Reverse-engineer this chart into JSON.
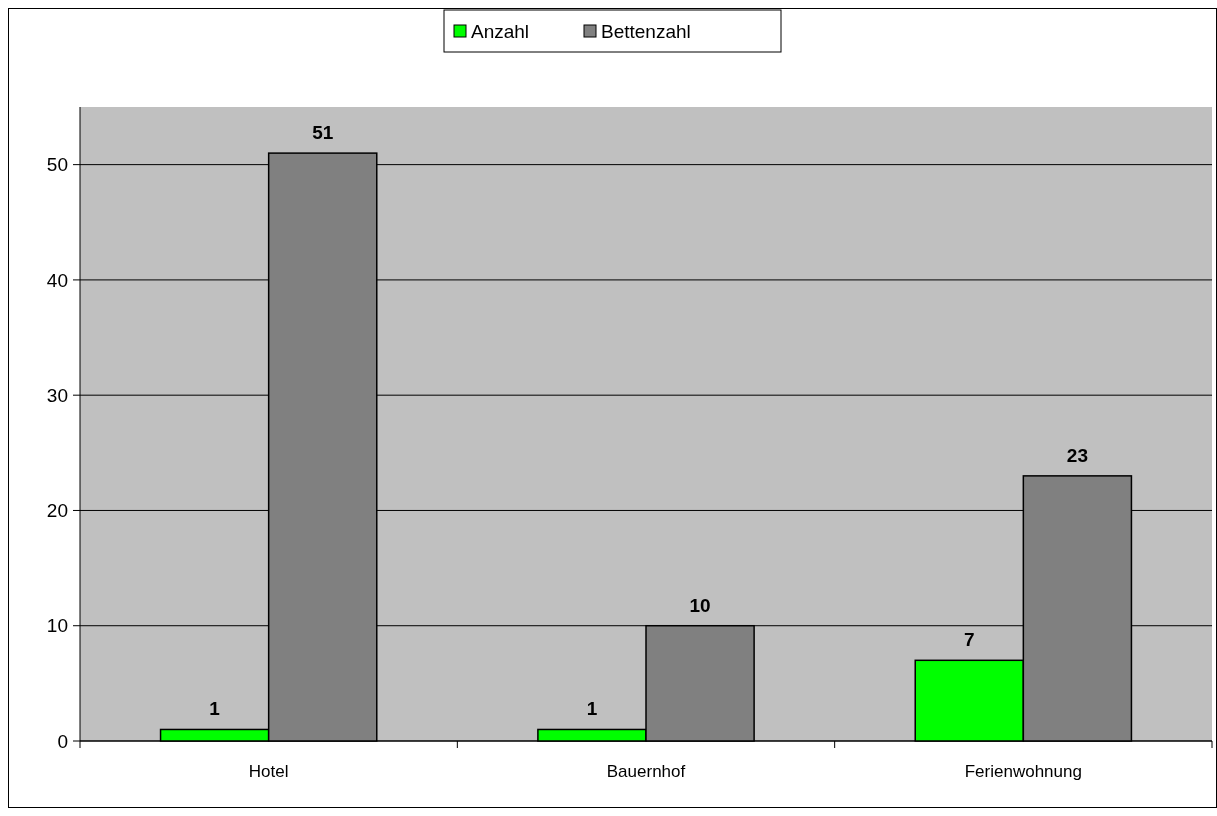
{
  "chart_data": {
    "type": "bar",
    "categories": [
      "Hotel",
      "Bauernhof",
      "Ferienwohnung"
    ],
    "series": [
      {
        "name": "Anzahl",
        "color": "#00ff00",
        "values": [
          1,
          1,
          7
        ]
      },
      {
        "name": "Bettenzahl",
        "color": "#808080",
        "values": [
          51,
          10,
          23
        ]
      }
    ],
    "ylim": [
      0,
      55
    ],
    "yticks": [
      0,
      10,
      20,
      30,
      40,
      50
    ],
    "grid": "y",
    "legend": "top",
    "data_labels": true
  }
}
